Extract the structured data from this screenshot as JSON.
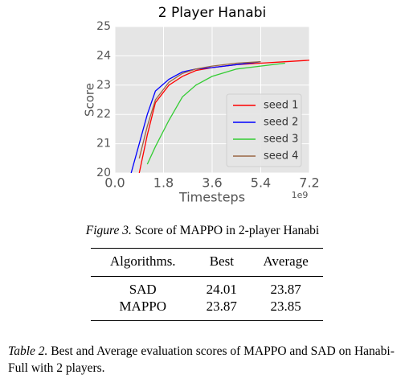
{
  "chart_data": {
    "type": "line",
    "title": "2 Player Hanabi",
    "xlabel": "Timesteps",
    "ylabel": "Score",
    "x_offset_label": "1e9",
    "x": [
      0.6,
      0.9,
      1.2,
      1.5,
      2.0,
      2.5,
      3.0,
      3.6,
      4.5,
      5.4,
      6.3,
      7.2
    ],
    "series": [
      {
        "name": "seed 1",
        "color": "#ff0000",
        "values": [
          null,
          20,
          21.3,
          22.4,
          23.0,
          23.3,
          23.5,
          23.6,
          23.7,
          23.75,
          23.8,
          23.85
        ]
      },
      {
        "name": "seed 2",
        "color": "#0000ff",
        "values": [
          20,
          21,
          22,
          22.8,
          23.2,
          23.45,
          23.55,
          23.6,
          23.7,
          23.8,
          null,
          null
        ]
      },
      {
        "name": "seed 3",
        "color": "#33cc33",
        "values": [
          null,
          null,
          20.3,
          20.9,
          21.8,
          22.6,
          23.0,
          23.3,
          23.55,
          23.65,
          23.75,
          null
        ]
      },
      {
        "name": "seed 4",
        "color": "#996644",
        "values": [
          null,
          20.5,
          21.6,
          22.5,
          23.1,
          23.4,
          23.55,
          23.65,
          23.75,
          23.8,
          null,
          null
        ]
      }
    ],
    "xlim": [
      0,
      7.2
    ],
    "xticks": [
      {
        "value": 0,
        "label": "0.0"
      },
      1.8,
      3.6,
      5.4,
      7.2
    ],
    "ylim": [
      20,
      25
    ],
    "yticks": [
      20,
      21,
      22,
      23,
      24,
      25
    ],
    "grid": true,
    "background": "#e5e5e5",
    "legend": "lower right"
  },
  "figure_caption": {
    "label": "Figure 3.",
    "text": "Score of MAPPO in 2-player Hanabi"
  },
  "table": {
    "header": [
      "Algorithms.",
      "Best",
      "Average"
    ],
    "rows": [
      [
        "SAD",
        24.01,
        23.87
      ],
      [
        "MAPPO",
        23.87,
        23.85
      ]
    ]
  },
  "table_caption": {
    "label": "Table 2.",
    "text": "Best and Average evaluation scores of MAPPO and SAD on Hanabi-Full with 2 players."
  }
}
